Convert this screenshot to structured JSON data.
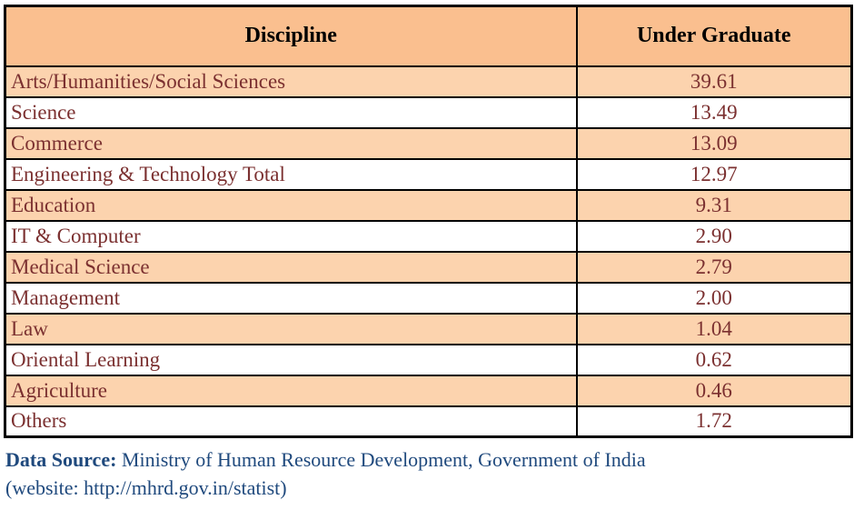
{
  "table": {
    "columns": [
      "Discipline",
      "Under Graduate"
    ],
    "rows": [
      {
        "discipline": "Arts/Humanities/Social Sciences",
        "under_graduate": "39.61"
      },
      {
        "discipline": "Science",
        "under_graduate": "13.49"
      },
      {
        "discipline": "Commerce",
        "under_graduate": "13.09"
      },
      {
        "discipline": "Engineering & Technology Total",
        "under_graduate": "12.97"
      },
      {
        "discipline": "Education",
        "under_graduate": "9.31"
      },
      {
        "discipline": "IT & Computer",
        "under_graduate": "2.90"
      },
      {
        "discipline": "Medical Science",
        "under_graduate": "2.79"
      },
      {
        "discipline": "Management",
        "under_graduate": "2.00"
      },
      {
        "discipline": "Law",
        "under_graduate": "1.04"
      },
      {
        "discipline": "Oriental Learning",
        "under_graduate": "0.62"
      },
      {
        "discipline": "Agriculture",
        "under_graduate": "0.46"
      },
      {
        "discipline": "Others",
        "under_graduate": "1.72"
      }
    ]
  },
  "footer": {
    "source_label": "Data Source:",
    "source_text": "Ministry of Human Resource Development, Government of India",
    "website_line": "(website: http://mhrd.gov.in/statist)"
  },
  "colors": {
    "header_bg": "#FABF8F",
    "row_alt_bg": "#FCD3AE",
    "row_bg": "#FFFFFF",
    "cell_text": "#7B3030",
    "header_text": "#000000",
    "footer_text": "#1F497D",
    "border": "#000000"
  },
  "chart_data": {
    "type": "table",
    "columns": [
      "Discipline",
      "Under Graduate"
    ],
    "categories": [
      "Arts/Humanities/Social Sciences",
      "Science",
      "Commerce",
      "Engineering & Technology Total",
      "Education",
      "IT & Computer",
      "Medical Science",
      "Management",
      "Law",
      "Oriental Learning",
      "Agriculture",
      "Others"
    ],
    "values": [
      39.61,
      13.49,
      13.09,
      12.97,
      9.31,
      2.9,
      2.79,
      2.0,
      1.04,
      0.62,
      0.46,
      1.72
    ],
    "title": "",
    "source": "Data Source: Ministry of Human Resource Development, Government of India (website: http://mhrd.gov.in/statist)"
  }
}
